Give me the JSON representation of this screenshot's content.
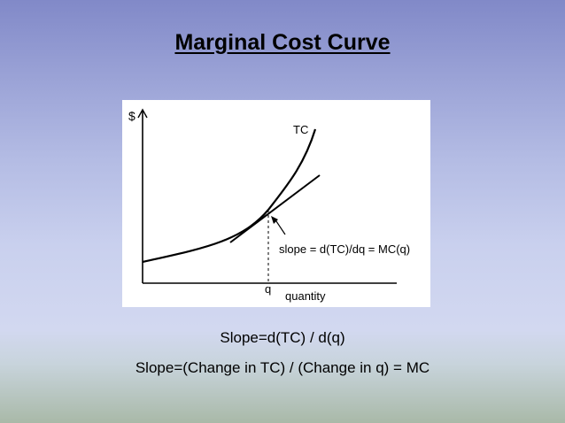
{
  "slide": {
    "title": "Marginal Cost Curve",
    "caption_line1": "Slope=d(TC) / d(q)",
    "caption_line2": "Slope=(Change in TC) / (Change in q) = MC"
  },
  "figure": {
    "y_axis_label": "$",
    "x_axis_label": "quantity",
    "curve_label": "TC",
    "tick_label": "q",
    "annotation": "slope = d(TC)/dq = MC(q)"
  }
}
